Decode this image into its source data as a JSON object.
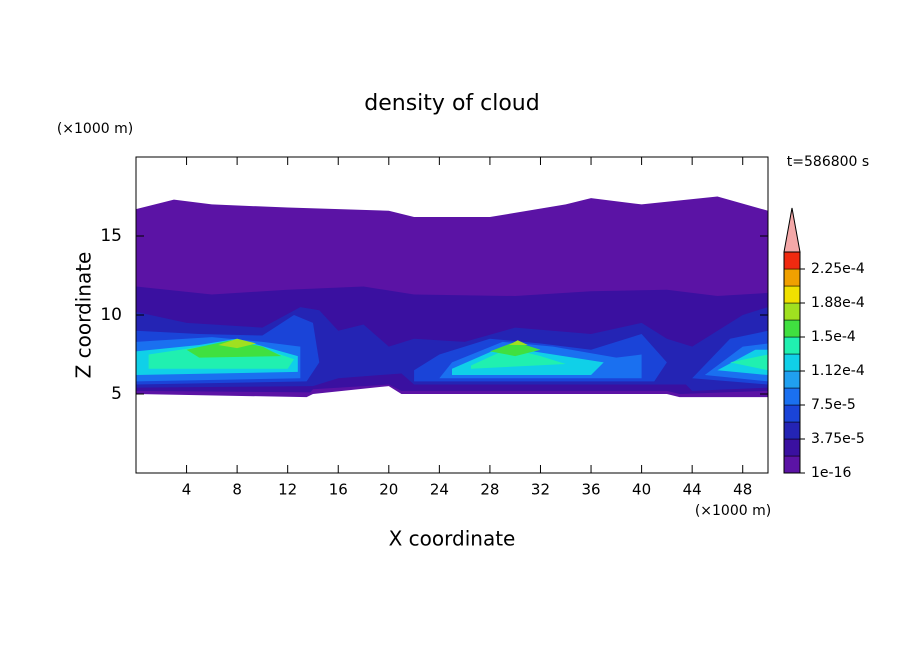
{
  "chart_data": {
    "type": "contour",
    "title": "density of cloud",
    "x_label": "X coordinate",
    "y_label": "Z coordinate",
    "x_unit": "(×1000 m)",
    "y_unit": "(×1000 m)",
    "annotation": "t=586800 s",
    "xlim": [
      0,
      50
    ],
    "xticks": [
      4,
      8,
      12,
      16,
      20,
      24,
      28,
      32,
      36,
      40,
      44,
      48
    ],
    "ylim": [
      0,
      20
    ],
    "yticks": [
      5,
      10,
      15
    ],
    "clim": [
      1e-16,
      0.00024375
    ],
    "colorbar_ticks": [
      {
        "value": 1e-16,
        "label": "1e-16"
      },
      {
        "value": 3.75e-05,
        "label": "3.75e-5"
      },
      {
        "value": 7.5e-05,
        "label": "7.5e-5"
      },
      {
        "value": 0.0001125,
        "label": "1.12e-4"
      },
      {
        "value": 0.00015,
        "label": "1.5e-4"
      },
      {
        "value": 0.0001875,
        "label": "1.88e-4"
      },
      {
        "value": 0.000225,
        "label": "2.25e-4"
      }
    ],
    "colors": [
      "#5b13a5",
      "#3a10a0",
      "#2424b4",
      "#1a44d8",
      "#1a70f0",
      "#20a0f0",
      "#10d0e8",
      "#20f0b0",
      "#40e040",
      "#a0e020",
      "#f0e000",
      "#f0a000",
      "#f02a10"
    ],
    "extend_color": "#f4a8a8"
  }
}
